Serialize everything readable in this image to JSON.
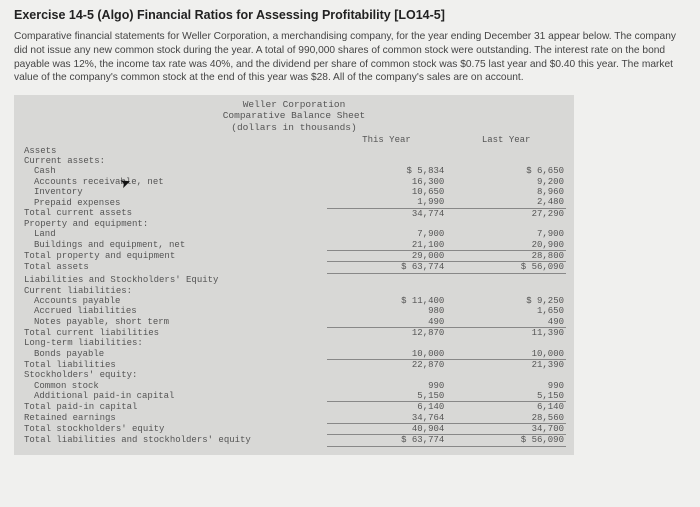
{
  "title": "Exercise 14-5 (Algo) Financial Ratios for Assessing Profitability [LO14-5]",
  "intro": "Comparative financial statements for Weller Corporation, a merchandising company, for the year ending December 31 appear below. The company did not issue any new common stock during the year. A total of 990,000 shares of common stock were outstanding. The interest rate on the bond payable was 12%, the income tax rate was 40%, and the dividend per share of common stock was $0.75 last year and $0.40 this year. The market value of the company's common stock at the end of this year was $28. All of the company's sales are on account.",
  "sheet": {
    "company": "Weller Corporation",
    "statement": "Comparative Balance Sheet",
    "units": "(dollars in thousands)",
    "col1": "This Year",
    "col2": "Last Year"
  },
  "sections": {
    "assets_hdr": "Assets",
    "current_assets_hdr": "Current assets:",
    "cash": "Cash",
    "ar": "Accounts receivable, net",
    "inventory": "Inventory",
    "prepaid": "Prepaid expenses",
    "tca": "Total current assets",
    "ppe_hdr": "Property and equipment:",
    "land": "Land",
    "bld": "Buildings and equipment, net",
    "tppe": "Total property and equipment",
    "ta": "Total assets",
    "lse_hdr": "Liabilities and Stockholders' Equity",
    "cl_hdr": "Current liabilities:",
    "ap": "Accounts payable",
    "accr": "Accrued liabilities",
    "np": "Notes payable, short term",
    "tcl": "Total current liabilities",
    "lt_hdr": "Long-term liabilities:",
    "bonds": "Bonds payable",
    "tl": "Total liabilities",
    "se_hdr": "Stockholders' equity:",
    "cs": "Common stock",
    "apic": "Additional paid-in capital",
    "tpic": "Total paid-in capital",
    "re": "Retained earnings",
    "tse": "Total stockholders' equity",
    "tlse": "Total liabilities and stockholders' equity"
  },
  "v": {
    "cash": {
      "ty": "$ 5,834",
      "ly": "$ 6,650"
    },
    "ar": {
      "ty": "16,300",
      "ly": "9,200"
    },
    "inventory": {
      "ty": "10,650",
      "ly": "8,960"
    },
    "prepaid": {
      "ty": "1,990",
      "ly": "2,480"
    },
    "tca": {
      "ty": "34,774",
      "ly": "27,290"
    },
    "land": {
      "ty": "7,900",
      "ly": "7,900"
    },
    "bld": {
      "ty": "21,100",
      "ly": "20,900"
    },
    "tppe": {
      "ty": "29,000",
      "ly": "28,800"
    },
    "ta": {
      "ty": "$ 63,774",
      "ly": "$ 56,090"
    },
    "ap": {
      "ty": "$ 11,400",
      "ly": "$ 9,250"
    },
    "accr": {
      "ty": "980",
      "ly": "1,650"
    },
    "np": {
      "ty": "490",
      "ly": "490"
    },
    "tcl": {
      "ty": "12,870",
      "ly": "11,390"
    },
    "bonds": {
      "ty": "10,000",
      "ly": "10,000"
    },
    "tl": {
      "ty": "22,870",
      "ly": "21,390"
    },
    "cs": {
      "ty": "990",
      "ly": "990"
    },
    "apic": {
      "ty": "5,150",
      "ly": "5,150"
    },
    "tpic": {
      "ty": "6,140",
      "ly": "6,140"
    },
    "re": {
      "ty": "34,764",
      "ly": "28,560"
    },
    "tse": {
      "ty": "40,904",
      "ly": "34,700"
    },
    "tlse": {
      "ty": "$ 63,774",
      "ly": "$ 56,090"
    }
  }
}
